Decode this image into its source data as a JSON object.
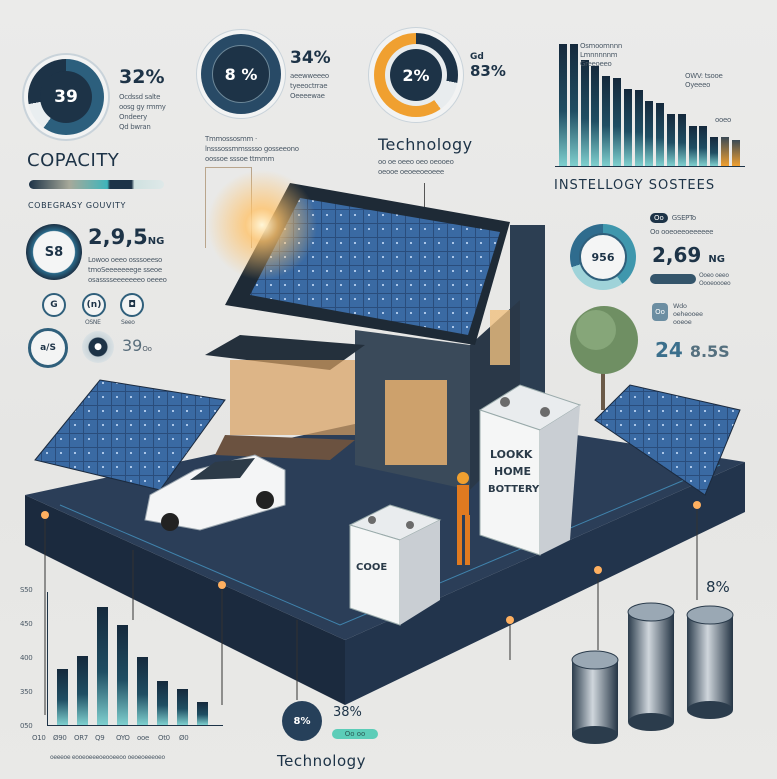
{
  "colors": {
    "navy": "#1d3347",
    "teal": "#3fa7a8",
    "orange": "#f0a030",
    "background": "#e9e9e7"
  },
  "gauges": {
    "g1": {
      "value": "39",
      "side_value": "32%",
      "caption": [
        "Ocdssd salte",
        "oosg gy rmmy",
        "Ondeery",
        "Qd bwran"
      ]
    },
    "g2": {
      "value": "8 %",
      "side_value": "34%",
      "caption": [
        "aeewweeeo",
        "tyeeoctrrae",
        "Oeeeewae"
      ]
    },
    "g3": {
      "value": "2%",
      "side_value": "83%",
      "caption": [
        "Gd",
        "lo"
      ]
    }
  },
  "capacity": {
    "title": "COPACITY",
    "subtitle": "COBEGRASY  GOUVITY",
    "progress": 0.62
  },
  "text_block": [
    "Tmmossosmm ·",
    "lnsssossmmsssso gosseeono",
    "oossoe sssoe ttmmm"
  ],
  "technology_top": {
    "title": "Technology",
    "caption": [
      "oo oe oeeo oeo oeooeo",
      "oeooe oeoeeoeoeee"
    ]
  },
  "top_chart": {
    "title": "INSTELLOGY SOSTEES",
    "labels": [
      "Osmoomnnn",
      "Lmnnnnnm",
      "Greeoeeo",
      "OWV: tsooe",
      "Oyeeeo",
      "ooeo"
    ],
    "values": [
      1,
      1,
      0.87,
      0.82,
      0.74,
      0.72,
      0.63,
      0.62,
      0.53,
      0.52,
      0.43,
      0.43,
      0.33,
      0.33,
      0.24,
      0.24,
      0.21
    ],
    "accent_last": 2
  },
  "left_stats": {
    "ring_value": "S8",
    "big_value": "2,9,5",
    "big_unit": "NG",
    "caption": [
      "Lowoo oeeo osssoeeso",
      "tmoSeeeeeeege sseoe",
      "osasssseeeeeeeo oeeeo"
    ],
    "icons": [
      {
        "glyph": "G",
        "label": ""
      },
      {
        "glyph": "(n)",
        "label": "OSNE"
      },
      {
        "glyph": "◘",
        "label": "Seeo"
      }
    ],
    "bottom_icon": "a/S",
    "stat_value": "39",
    "stat_unit": "Oo"
  },
  "right_stats": {
    "ring_value": "956",
    "pill": "Oo",
    "pill_label": "GSEPTo",
    "line": "Oo ooeoeeoeeeeee",
    "big_value": "2,69",
    "big_unit": "NG",
    "bar_caption": [
      "Ooeo oeeo",
      "Oooeoooeo"
    ],
    "badge": "Oo",
    "badge_caption": [
      "Wdo",
      "oeheooee",
      "ooeoe"
    ],
    "value2": "24",
    "value2_rest": "8.5S"
  },
  "bottom_chart": {
    "y_ticks": [
      "S50",
      "450",
      "400",
      "350",
      "050"
    ],
    "values": [
      0.42,
      0.52,
      0.89,
      0.75,
      0.51,
      0.33,
      0.27,
      0.17
    ],
    "x_ticks": [
      "O10",
      "Ø90",
      "OR7",
      "Q9",
      "OYO",
      "ooe",
      "Ot0",
      "Ø0"
    ],
    "caption": "oeeeoe eooeoeeeoeooeeoo oeoeoeeeoeo"
  },
  "bottom_stat": {
    "circle": "8%",
    "value": "38%",
    "pill": "Oo oo",
    "title": "Technology"
  },
  "coins": {
    "value": "8%"
  },
  "illustration": {
    "big_battery": [
      "LOOKK",
      "HOME",
      "BOTTERY"
    ],
    "small_battery": "COOE"
  }
}
